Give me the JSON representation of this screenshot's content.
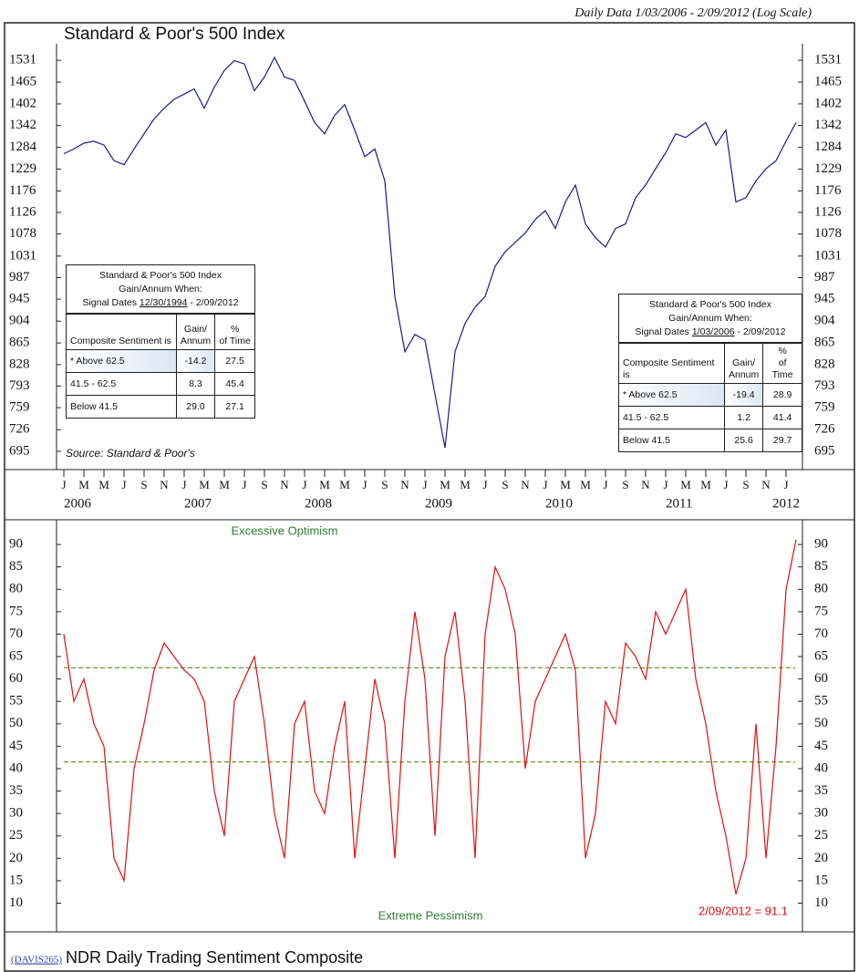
{
  "header": {
    "note": "Daily Data 1/03/2006 - 2/09/2012 (Log Scale)"
  },
  "chart_data": [
    {
      "type": "line",
      "title": "Standard & Poor's 500 Index",
      "source": "Source: Standard & Poor's",
      "log_scale": true,
      "color": "#1a1a8c",
      "x": [
        "2006-01",
        "2006-02",
        "2006-03",
        "2006-04",
        "2006-05",
        "2006-06",
        "2006-07",
        "2006-08",
        "2006-09",
        "2006-10",
        "2006-11",
        "2006-12",
        "2007-01",
        "2007-02",
        "2007-03",
        "2007-04",
        "2007-05",
        "2007-06",
        "2007-07",
        "2007-08",
        "2007-09",
        "2007-10",
        "2007-11",
        "2007-12",
        "2008-01",
        "2008-02",
        "2008-03",
        "2008-04",
        "2008-05",
        "2008-06",
        "2008-07",
        "2008-08",
        "2008-09",
        "2008-10",
        "2008-11",
        "2008-12",
        "2009-01",
        "2009-02",
        "2009-03",
        "2009-04",
        "2009-05",
        "2009-06",
        "2009-07",
        "2009-08",
        "2009-09",
        "2009-10",
        "2009-11",
        "2009-12",
        "2010-01",
        "2010-02",
        "2010-03",
        "2010-04",
        "2010-05",
        "2010-06",
        "2010-07",
        "2010-08",
        "2010-09",
        "2010-10",
        "2010-11",
        "2010-12",
        "2011-01",
        "2011-02",
        "2011-03",
        "2011-04",
        "2011-05",
        "2011-06",
        "2011-07",
        "2011-08",
        "2011-09",
        "2011-10",
        "2011-11",
        "2011-12",
        "2012-01",
        "2012-02"
      ],
      "values": [
        1268,
        1280,
        1295,
        1300,
        1290,
        1250,
        1240,
        1280,
        1320,
        1360,
        1390,
        1415,
        1430,
        1445,
        1390,
        1450,
        1500,
        1530,
        1520,
        1440,
        1480,
        1540,
        1480,
        1470,
        1410,
        1350,
        1320,
        1370,
        1400,
        1330,
        1260,
        1280,
        1200,
        950,
        850,
        880,
        870,
        780,
        700,
        850,
        900,
        930,
        950,
        1010,
        1040,
        1060,
        1080,
        1110,
        1130,
        1090,
        1150,
        1190,
        1100,
        1070,
        1050,
        1090,
        1100,
        1160,
        1190,
        1230,
        1270,
        1320,
        1310,
        1330,
        1350,
        1290,
        1330,
        1150,
        1160,
        1200,
        1230,
        1250,
        1300,
        1350
      ],
      "ylim": [
        676,
        1583
      ],
      "yticks": [
        695,
        726,
        759,
        793,
        828,
        865,
        904,
        945,
        987,
        1031,
        1078,
        1126,
        1176,
        1229,
        1284,
        1342,
        1402,
        1465,
        1531
      ],
      "xticks": [
        {
          "value": "2006-01",
          "label": "J"
        },
        {
          "value": "2006-03",
          "label": "M"
        },
        {
          "value": "2006-05",
          "label": "M"
        },
        {
          "value": "2006-07",
          "label": "J"
        },
        {
          "value": "2006-09",
          "label": "S"
        },
        {
          "value": "2006-11",
          "label": "N"
        },
        {
          "value": "2007-01",
          "label": "J"
        },
        {
          "value": "2007-03",
          "label": "M"
        },
        {
          "value": "2007-05",
          "label": "M"
        },
        {
          "value": "2007-07",
          "label": "J"
        },
        {
          "value": "2007-09",
          "label": "S"
        },
        {
          "value": "2007-11",
          "label": "N"
        },
        {
          "value": "2008-01",
          "label": "J"
        },
        {
          "value": "2008-03",
          "label": "M"
        },
        {
          "value": "2008-05",
          "label": "M"
        },
        {
          "value": "2008-07",
          "label": "J"
        },
        {
          "value": "2008-09",
          "label": "S"
        },
        {
          "value": "2008-11",
          "label": "N"
        },
        {
          "value": "2009-01",
          "label": "J"
        },
        {
          "value": "2009-03",
          "label": "M"
        },
        {
          "value": "2009-05",
          "label": "M"
        },
        {
          "value": "2009-07",
          "label": "J"
        },
        {
          "value": "2009-09",
          "label": "S"
        },
        {
          "value": "2009-11",
          "label": "N"
        },
        {
          "value": "2010-01",
          "label": "J"
        },
        {
          "value": "2010-03",
          "label": "M"
        },
        {
          "value": "2010-05",
          "label": "M"
        },
        {
          "value": "2010-07",
          "label": "J"
        },
        {
          "value": "2010-09",
          "label": "S"
        },
        {
          "value": "2010-11",
          "label": "N"
        },
        {
          "value": "2011-01",
          "label": "J"
        },
        {
          "value": "2011-03",
          "label": "M"
        },
        {
          "value": "2011-05",
          "label": "M"
        },
        {
          "value": "2011-07",
          "label": "J"
        },
        {
          "value": "2011-09",
          "label": "S"
        },
        {
          "value": "2011-11",
          "label": "N"
        },
        {
          "value": "2012-01",
          "label": "J"
        }
      ],
      "year_ticks": [
        {
          "value": "2006-01",
          "label": "2006"
        },
        {
          "value": "2007-01",
          "label": "2007"
        },
        {
          "value": "2008-01",
          "label": "2008"
        },
        {
          "value": "2009-01",
          "label": "2009"
        },
        {
          "value": "2010-01",
          "label": "2010"
        },
        {
          "value": "2011-01",
          "label": "2011"
        },
        {
          "value": "2012-01",
          "label": "2012"
        }
      ]
    },
    {
      "type": "line",
      "title": "NDR Daily Trading Sentiment Composite",
      "color": "#e01010",
      "x": [
        "2006-01",
        "2006-02",
        "2006-03",
        "2006-04",
        "2006-05",
        "2006-06",
        "2006-07",
        "2006-08",
        "2006-09",
        "2006-10",
        "2006-11",
        "2006-12",
        "2007-01",
        "2007-02",
        "2007-03",
        "2007-04",
        "2007-05",
        "2007-06",
        "2007-07",
        "2007-08",
        "2007-09",
        "2007-10",
        "2007-11",
        "2007-12",
        "2008-01",
        "2008-02",
        "2008-03",
        "2008-04",
        "2008-05",
        "2008-06",
        "2008-07",
        "2008-08",
        "2008-09",
        "2008-10",
        "2008-11",
        "2008-12",
        "2009-01",
        "2009-02",
        "2009-03",
        "2009-04",
        "2009-05",
        "2009-06",
        "2009-07",
        "2009-08",
        "2009-09",
        "2009-10",
        "2009-11",
        "2009-12",
        "2010-01",
        "2010-02",
        "2010-03",
        "2010-04",
        "2010-05",
        "2010-06",
        "2010-07",
        "2010-08",
        "2010-09",
        "2010-10",
        "2010-11",
        "2010-12",
        "2011-01",
        "2011-02",
        "2011-03",
        "2011-04",
        "2011-05",
        "2011-06",
        "2011-07",
        "2011-08",
        "2011-09",
        "2011-10",
        "2011-11",
        "2011-12",
        "2012-01",
        "2012-02"
      ],
      "values": [
        70,
        55,
        60,
        50,
        45,
        20,
        15,
        40,
        50,
        62,
        68,
        65,
        62,
        60,
        55,
        35,
        25,
        55,
        60,
        65,
        50,
        30,
        20,
        50,
        55,
        35,
        30,
        45,
        55,
        20,
        40,
        60,
        50,
        20,
        55,
        75,
        60,
        25,
        65,
        75,
        55,
        20,
        70,
        85,
        80,
        70,
        40,
        55,
        60,
        65,
        70,
        62,
        20,
        30,
        55,
        50,
        68,
        65,
        60,
        75,
        70,
        75,
        80,
        60,
        50,
        35,
        25,
        12,
        20,
        50,
        20,
        45,
        80,
        91.1
      ],
      "ylim": [
        4,
        94.5
      ],
      "yticks": [
        10,
        15,
        20,
        25,
        30,
        35,
        40,
        45,
        50,
        55,
        60,
        65,
        70,
        75,
        80,
        85,
        90
      ],
      "reference_lines": [
        62.5,
        41.5
      ],
      "annotations": [
        "Excessive Optimism",
        "Extreme Pessimism",
        "2/09/2012 = 91.1"
      ],
      "footer_code": "(DAVIS265)"
    }
  ],
  "tables": [
    {
      "title": [
        "Standard & Poor's 500 Index",
        "Gain/Annum When:"
      ],
      "signal_label": "Signal Dates",
      "signal_start": "12/30/1994",
      "signal_end": "- 2/09/2012",
      "header": [
        [
          "Composite Sentiment is"
        ],
        [
          "Gain/",
          "Annum"
        ],
        [
          "%",
          "of Time"
        ]
      ],
      "rows": [
        [
          "* Above 62.5",
          "-14.2",
          "27.5"
        ],
        [
          "41.5 - 62.5",
          "8.3",
          "45.4"
        ],
        [
          "Below 41.5",
          "29.0",
          "27.1"
        ]
      ]
    },
    {
      "title": [
        "Standard & Poor's 500 Index",
        "Gain/Annum When:"
      ],
      "signal_label": "Signal Dates",
      "signal_start": "1/03/2006",
      "signal_end": "- 2/09/2012",
      "header": [
        [
          "Composite Sentiment is"
        ],
        [
          "Gain/",
          "Annum"
        ],
        [
          "%",
          "of Time"
        ]
      ],
      "rows": [
        [
          "* Above 62.5",
          "-19.4",
          "28.9"
        ],
        [
          "41.5 - 62.5",
          "1.2",
          "41.4"
        ],
        [
          "Below 41.5",
          "25.6",
          "29.7"
        ]
      ]
    }
  ]
}
